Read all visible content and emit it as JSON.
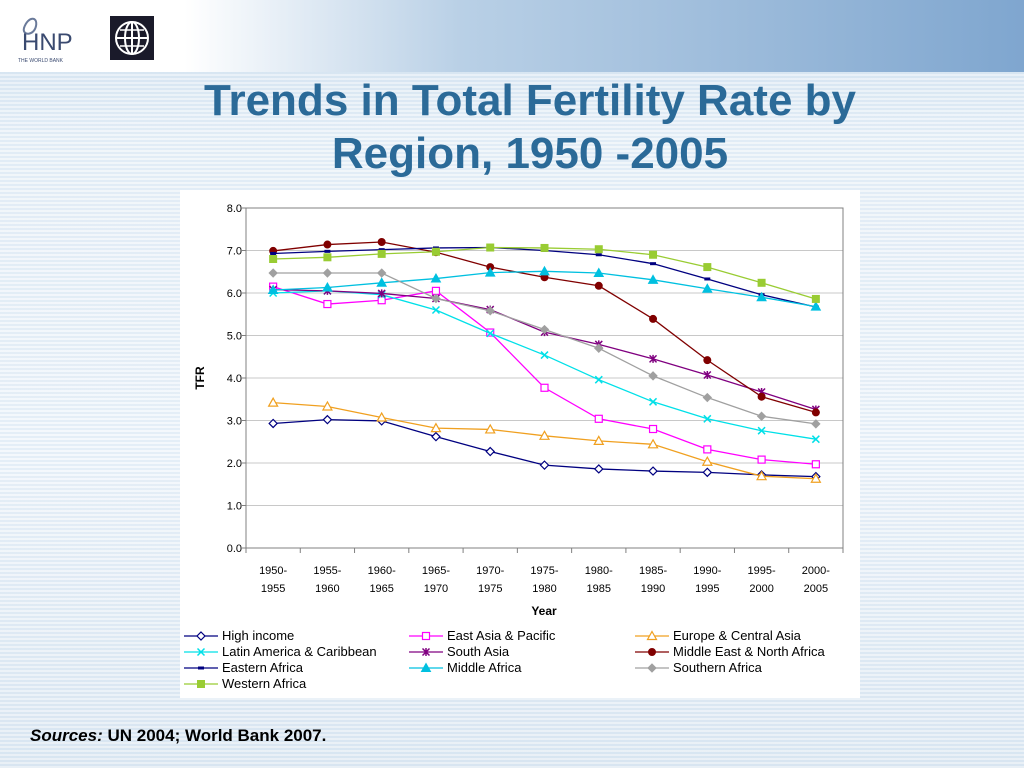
{
  "header": {
    "logo_text": "HNP",
    "logo_subtext": "THE WORLD BANK"
  },
  "title_line1": "Trends in Total Fertility Rate by",
  "title_line2": "Region, 1950 -2005",
  "sources": {
    "label": "Sources:",
    "text": " UN 2004; World Bank 2007."
  },
  "chart_data": {
    "type": "line",
    "xlabel": "Year",
    "ylabel": "TFR",
    "ylim": [
      0,
      8
    ],
    "yticks": [
      "0.0",
      "1.0",
      "2.0",
      "3.0",
      "4.0",
      "5.0",
      "6.0",
      "7.0",
      "8.0"
    ],
    "categories": [
      [
        "1950-",
        "1955"
      ],
      [
        "1955-",
        "1960"
      ],
      [
        "1960-",
        "1965"
      ],
      [
        "1965-",
        "1970"
      ],
      [
        "1970-",
        "1975"
      ],
      [
        "1975-",
        "1980"
      ],
      [
        "1980-",
        "1985"
      ],
      [
        "1985-",
        "1990"
      ],
      [
        "1990-",
        "1995"
      ],
      [
        "1995-",
        "2000"
      ],
      [
        "2000-",
        "2005"
      ]
    ],
    "grid": "horizontal",
    "legend_position": "bottom",
    "series": [
      {
        "name": "High income",
        "color": "#000080",
        "marker": "diamond-open",
        "values": [
          2.93,
          3.02,
          2.99,
          2.62,
          2.27,
          1.95,
          1.86,
          1.81,
          1.78,
          1.72,
          1.68
        ]
      },
      {
        "name": "East Asia & Pacific",
        "color": "#ff00ff",
        "marker": "square-open",
        "values": [
          6.15,
          5.74,
          5.83,
          6.05,
          5.07,
          3.77,
          3.04,
          2.8,
          2.32,
          2.08,
          1.97
        ]
      },
      {
        "name": "Europe & Central Asia",
        "color": "#f0a020",
        "marker": "triangle-open",
        "values": [
          3.42,
          3.33,
          3.07,
          2.82,
          2.79,
          2.64,
          2.52,
          2.44,
          2.03,
          1.69,
          1.63
        ]
      },
      {
        "name": "Latin America & Caribbean",
        "color": "#00e0e8",
        "marker": "x",
        "values": [
          6.0,
          6.05,
          5.96,
          5.6,
          5.05,
          4.54,
          3.96,
          3.44,
          3.04,
          2.76,
          2.56
        ]
      },
      {
        "name": "South Asia",
        "color": "#800080",
        "marker": "star",
        "values": [
          6.08,
          6.05,
          5.99,
          5.87,
          5.61,
          5.08,
          4.79,
          4.45,
          4.07,
          3.67,
          3.26
        ]
      },
      {
        "name": "Middle East & North Africa",
        "color": "#800000",
        "marker": "circle",
        "values": [
          6.99,
          7.14,
          7.2,
          6.96,
          6.61,
          6.37,
          6.17,
          5.39,
          4.42,
          3.56,
          3.19
        ]
      },
      {
        "name": "Eastern Africa",
        "color": "#000080",
        "marker": "dash",
        "values": [
          6.93,
          6.98,
          7.02,
          7.06,
          7.07,
          7.0,
          6.9,
          6.69,
          6.33,
          5.96,
          5.67
        ]
      },
      {
        "name": "Middle Africa",
        "color": "#00c0e0",
        "marker": "triangle",
        "values": [
          6.07,
          6.13,
          6.24,
          6.34,
          6.48,
          6.51,
          6.47,
          6.31,
          6.1,
          5.9,
          5.68
        ]
      },
      {
        "name": "Southern Africa",
        "color": "#a0a0a0",
        "marker": "diamond",
        "values": [
          6.47,
          6.47,
          6.47,
          5.87,
          5.58,
          5.14,
          4.7,
          4.05,
          3.54,
          3.1,
          2.92
        ]
      },
      {
        "name": "Western Africa",
        "color": "#99cc33",
        "marker": "square",
        "values": [
          6.8,
          6.84,
          6.92,
          6.97,
          7.07,
          7.06,
          7.03,
          6.9,
          6.61,
          6.24,
          5.86
        ]
      }
    ]
  }
}
